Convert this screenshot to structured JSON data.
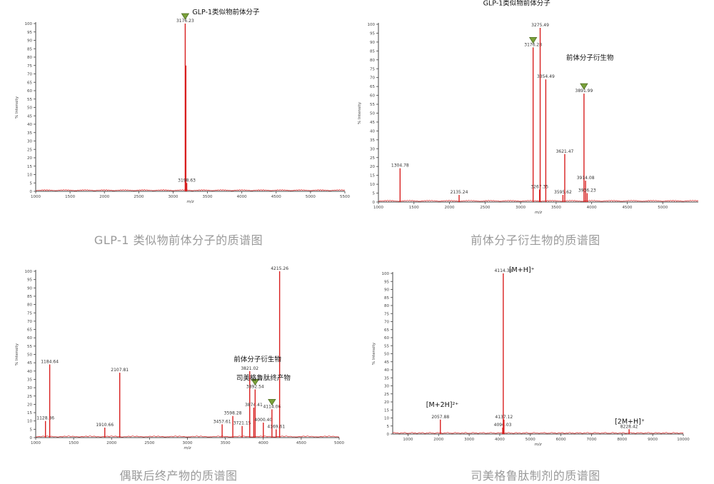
{
  "chart_data": [
    {
      "type": "line",
      "caption": "GLP-1 类似物前体分子的质谱图",
      "xlabel": "m/z",
      "ylabel": "% Intensity",
      "xlim": [
        1000,
        5500
      ],
      "ylim": [
        0,
        100
      ],
      "xticks": [
        1000,
        1500,
        2000,
        2500,
        3000,
        3500,
        4000,
        4500,
        5000,
        5500
      ],
      "yticks": [
        0,
        5,
        10,
        15,
        20,
        25,
        30,
        35,
        40,
        45,
        50,
        55,
        60,
        65,
        70,
        75,
        80,
        85,
        90,
        95,
        100
      ],
      "peaks": [
        {
          "mz": 3176.23,
          "intensity": 100,
          "label": "3176.23"
        },
        {
          "mz": 3186.0,
          "intensity": 75
        },
        {
          "mz": 3198.63,
          "intensity": 5,
          "label": "3198.63"
        }
      ],
      "annotations": [
        {
          "text": "GLP-1类似物前体分子",
          "mz": 3176.23,
          "intensity": 100,
          "marker": true
        }
      ]
    },
    {
      "type": "line",
      "caption": "前体分子衍生物的质谱图",
      "xlabel": "m/z",
      "ylabel": "% Intensity",
      "xlim": [
        1000,
        5500
      ],
      "ylim": [
        0,
        100
      ],
      "xticks": [
        1000,
        1500,
        2000,
        2500,
        3000,
        3500,
        4000,
        4500,
        5000
      ],
      "yticks": [
        0,
        5,
        10,
        15,
        20,
        25,
        30,
        35,
        40,
        45,
        50,
        55,
        60,
        65,
        70,
        75,
        80,
        85,
        90,
        95,
        100
      ],
      "peaks": [
        {
          "mz": 1304.78,
          "intensity": 19,
          "label": "1304.78"
        },
        {
          "mz": 2135.24,
          "intensity": 4,
          "label": "2135.24"
        },
        {
          "mz": 3176.28,
          "intensity": 87,
          "label": "3176.28"
        },
        {
          "mz": 3267.35,
          "intensity": 7,
          "label": "3267.35"
        },
        {
          "mz": 3275.49,
          "intensity": 98,
          "label": "3275.49"
        },
        {
          "mz": 3354.49,
          "intensity": 69,
          "label": "3354.49"
        },
        {
          "mz": 3595.62,
          "intensity": 4,
          "label": "3595.62"
        },
        {
          "mz": 3621.47,
          "intensity": 27,
          "label": "3621.47"
        },
        {
          "mz": 3891.99,
          "intensity": 61,
          "label": "3891.99"
        },
        {
          "mz": 3914.08,
          "intensity": 12,
          "label": "3914.08"
        },
        {
          "mz": 3936.23,
          "intensity": 5,
          "label": "3936.23"
        }
      ],
      "annotations": [
        {
          "text": "GLP-1类似物前体分子",
          "mz": 3176.28,
          "intensity": 87,
          "marker": true
        },
        {
          "text": "前体分子衍生物",
          "mz": 3891.99,
          "intensity": 61,
          "marker": true
        }
      ]
    },
    {
      "type": "line",
      "caption": "偶联后终产物的质谱图",
      "xlabel": "m/z",
      "ylabel": "% Intensity",
      "xlim": [
        1000,
        5000
      ],
      "ylim": [
        0,
        100
      ],
      "xticks": [
        1000,
        1500,
        2000,
        2500,
        3000,
        3500,
        4000,
        4500,
        5000
      ],
      "yticks": [
        0,
        5,
        10,
        15,
        20,
        25,
        30,
        35,
        40,
        45,
        50,
        55,
        60,
        65,
        70,
        75,
        80,
        85,
        90,
        95,
        100
      ],
      "peaks": [
        {
          "mz": 1128.86,
          "intensity": 10,
          "label": "1128.86"
        },
        {
          "mz": 1184.64,
          "intensity": 44,
          "label": "1184.64"
        },
        {
          "mz": 1910.66,
          "intensity": 6,
          "label": "1910.66"
        },
        {
          "mz": 2107.81,
          "intensity": 39,
          "label": "2107.81"
        },
        {
          "mz": 3457.61,
          "intensity": 8,
          "label": "3457.61"
        },
        {
          "mz": 3598.28,
          "intensity": 13,
          "label": "3598.28"
        },
        {
          "mz": 3721.15,
          "intensity": 7,
          "label": "3721.15"
        },
        {
          "mz": 3821.02,
          "intensity": 40,
          "label": "3821.02"
        },
        {
          "mz": 3874.41,
          "intensity": 18,
          "label": "3874.41"
        },
        {
          "mz": 3892.54,
          "intensity": 29,
          "label": "3892.54"
        },
        {
          "mz": 4000.4,
          "intensity": 9,
          "label": "4000.40"
        },
        {
          "mz": 4114.06,
          "intensity": 17,
          "label": "4114.06"
        },
        {
          "mz": 4169.61,
          "intensity": 5,
          "label": "4169.61"
        },
        {
          "mz": 4215.26,
          "intensity": 100,
          "label": "4215.26"
        }
      ],
      "annotations": [
        {
          "text": "前体分子衍生物",
          "mz": 3892.54,
          "intensity": 29,
          "marker": true
        },
        {
          "text": "司美格鲁肽终产物",
          "mz": 4114.06,
          "intensity": 17,
          "marker": true
        }
      ]
    },
    {
      "type": "line",
      "caption": "司美格鲁肽制剂的质谱图",
      "xlabel": "m/z",
      "ylabel": "% Intensity",
      "xlim": [
        500,
        10000
      ],
      "ylim": [
        0,
        100
      ],
      "xticks": [
        1000,
        2000,
        3000,
        4000,
        5000,
        6000,
        7000,
        8000,
        9000,
        10000
      ],
      "yticks": [
        0,
        5,
        10,
        15,
        20,
        25,
        30,
        35,
        40,
        45,
        50,
        55,
        60,
        65,
        70,
        75,
        80,
        85,
        90,
        95,
        100
      ],
      "peaks": [
        {
          "mz": 2057.88,
          "intensity": 9,
          "label": "2057.88"
        },
        {
          "mz": 4096.03,
          "intensity": 4,
          "label": "4096.03"
        },
        {
          "mz": 4114.38,
          "intensity": 100,
          "label": "4114.38"
        },
        {
          "mz": 4137.12,
          "intensity": 9,
          "label": "4137.12"
        },
        {
          "mz": 8228.42,
          "intensity": 3,
          "label": "8228.42"
        }
      ],
      "annotations": [
        {
          "text": "[M+H]⁺",
          "mz": 4114.38,
          "intensity": 100,
          "marker": false
        },
        {
          "text": "[M+2H]²⁺",
          "mz": 2057.88,
          "intensity": 9,
          "marker": false
        },
        {
          "text": "[2M+H]⁺",
          "mz": 8228.42,
          "intensity": 3,
          "marker": false
        }
      ]
    }
  ],
  "colors": {
    "spectrum": "#d81f1f",
    "marker_fill": "#7aa23a",
    "marker_stroke": "#4f6e22",
    "axis": "#444444",
    "caption": "#9a9a9a"
  }
}
